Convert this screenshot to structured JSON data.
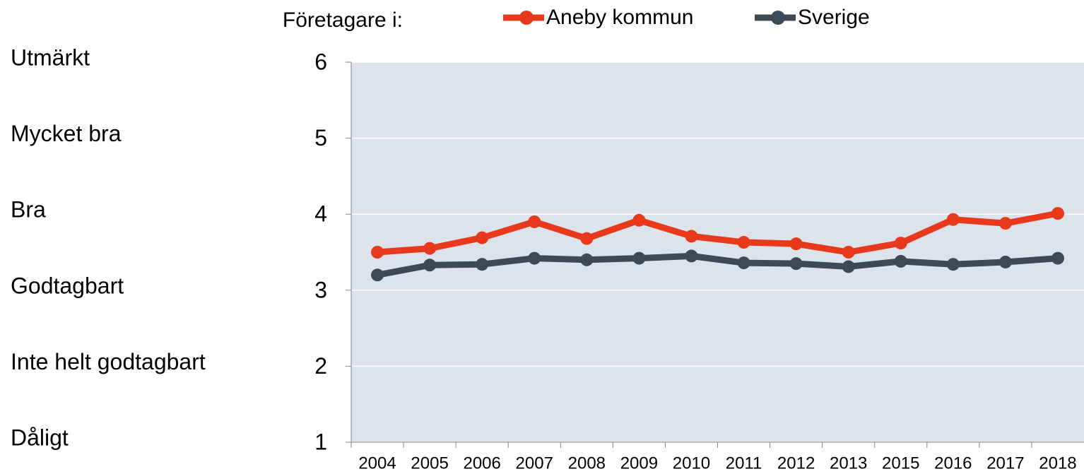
{
  "chart_data": {
    "type": "line",
    "legend_title": "Företagare i:",
    "y_category_labels": [
      "Dåligt",
      "Inte helt godtagbart",
      "Godtagbart",
      "Bra",
      "Mycket bra",
      "Utmärkt"
    ],
    "categories": [
      "2004",
      "2005",
      "2006",
      "2007",
      "2008",
      "2009",
      "2010",
      "2011",
      "2012",
      "2013",
      "2015",
      "2016",
      "2017",
      "2018"
    ],
    "series": [
      {
        "name": "Aneby kommun",
        "color": "#e8391d",
        "values": [
          3.5,
          3.55,
          3.69,
          3.9,
          3.68,
          3.92,
          3.71,
          3.63,
          3.61,
          3.5,
          3.62,
          3.93,
          3.88,
          4.01
        ]
      },
      {
        "name": "Sverige",
        "color": "#3d4a55",
        "values": [
          3.2,
          3.33,
          3.34,
          3.42,
          3.4,
          3.42,
          3.45,
          3.36,
          3.35,
          3.31,
          3.38,
          3.34,
          3.37,
          3.42
        ]
      }
    ],
    "ylim": [
      1,
      6
    ],
    "yticks": [
      1,
      2,
      3,
      4,
      5,
      6
    ],
    "grid": true,
    "plot_background": "#dde3ea"
  }
}
